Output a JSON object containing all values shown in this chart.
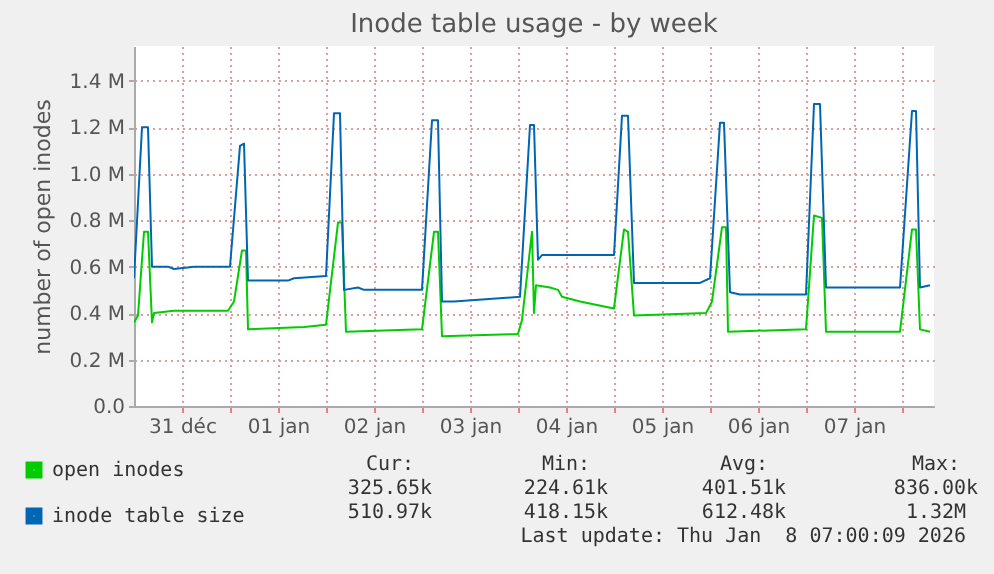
{
  "chart_data": {
    "type": "line",
    "title": "Inode table usage - by week",
    "ylabel": "number of open inodes",
    "xlim": [
      "2025-12-31T00:00",
      "2026-01-08T08:00"
    ],
    "xticks": [
      {
        "value": "2025-12-31T12:00",
        "label": "31 déc"
      },
      {
        "value": "2026-01-01T00:00",
        "label": null
      },
      {
        "value": "2026-01-01T12:00",
        "label": "01 jan"
      },
      {
        "value": "2026-01-02T00:00",
        "label": null
      },
      {
        "value": "2026-01-02T12:00",
        "label": "02 jan"
      },
      {
        "value": "2026-01-03T00:00",
        "label": null
      },
      {
        "value": "2026-01-03T12:00",
        "label": "03 jan"
      },
      {
        "value": "2026-01-04T00:00",
        "label": null
      },
      {
        "value": "2026-01-04T12:00",
        "label": "04 jan"
      },
      {
        "value": "2026-01-05T00:00",
        "label": null
      },
      {
        "value": "2026-01-05T12:00",
        "label": "05 jan"
      },
      {
        "value": "2026-01-06T00:00",
        "label": null
      },
      {
        "value": "2026-01-06T12:00",
        "label": "06 jan"
      },
      {
        "value": "2026-01-07T00:00",
        "label": null
      },
      {
        "value": "2026-01-07T12:00",
        "label": "07 jan"
      },
      {
        "value": "2026-01-08T00:00",
        "label": null
      }
    ],
    "ylim": [
      0,
      1550000
    ],
    "yticks": [
      {
        "value": 0,
        "label": "0.0"
      },
      {
        "value": 200000,
        "label": "0.2 M"
      },
      {
        "value": 400000,
        "label": "0.4 M"
      },
      {
        "value": 600000,
        "label": "0.6 M"
      },
      {
        "value": 800000,
        "label": "0.8 M"
      },
      {
        "value": 1000000,
        "label": "1.0 M"
      },
      {
        "value": 1200000,
        "label": "1.2 M"
      },
      {
        "value": 1400000,
        "label": "1.4 M"
      }
    ],
    "grid": true,
    "legend": "bottom left",
    "line_style": "solid",
    "series": [
      {
        "name": "open inodes",
        "color": "#00cc00",
        "x": [
          "2025-12-31T00:00",
          "2025-12-31T01:00",
          "2025-12-31T02:30",
          "2025-12-31T03:30",
          "2025-12-31T04:30",
          "2025-12-31T05:00",
          "2025-12-31T10:00",
          "2025-12-31T23:30",
          "2026-01-01T01:00",
          "2026-01-01T03:00",
          "2026-01-01T04:00",
          "2026-01-01T04:30",
          "2026-01-01T18:30",
          "2026-01-02T00:00",
          "2026-01-02T03:00",
          "2026-01-02T04:00",
          "2026-01-02T05:00",
          "2026-01-03T00:00",
          "2026-01-03T03:00",
          "2026-01-03T04:00",
          "2026-01-03T05:00",
          "2026-01-04T00:00",
          "2026-01-04T01:00",
          "2026-01-04T03:30",
          "2026-01-04T04:00",
          "2026-01-04T04:30",
          "2026-01-04T08:00",
          "2026-01-04T10:00",
          "2026-01-04T11:00",
          "2026-01-04T15:30",
          "2026-01-05T00:00",
          "2026-01-05T02:30",
          "2026-01-05T03:30",
          "2026-01-05T05:00",
          "2026-01-05T23:00",
          "2026-01-06T00:30",
          "2026-01-06T03:00",
          "2026-01-06T04:00",
          "2026-01-06T04:30",
          "2026-01-07T00:00",
          "2026-01-07T02:00",
          "2026-01-07T04:00",
          "2026-01-07T05:00",
          "2026-01-07T23:30",
          "2026-01-08T02:30",
          "2026-01-08T03:30",
          "2026-01-08T04:30",
          "2026-01-08T07:00"
        ],
        "values": [
          360000,
          390000,
          750000,
          750000,
          360000,
          400000,
          410000,
          410000,
          450000,
          670000,
          670000,
          330000,
          340000,
          350000,
          790000,
          790000,
          320000,
          330000,
          750000,
          750000,
          300000,
          310000,
          370000,
          750000,
          400000,
          520000,
          510000,
          500000,
          470000,
          450000,
          420000,
          760000,
          750000,
          390000,
          400000,
          450000,
          770000,
          770000,
          320000,
          330000,
          820000,
          810000,
          320000,
          320000,
          760000,
          760000,
          330000,
          320000
        ]
      },
      {
        "name": "inode table size",
        "color": "#0066b3",
        "x": [
          "2025-12-31T00:00",
          "2025-12-31T02:00",
          "2025-12-31T03:30",
          "2025-12-31T04:30",
          "2025-12-31T08:30",
          "2025-12-31T10:00",
          "2025-12-31T15:00",
          "2026-01-01T00:00",
          "2026-01-01T02:30",
          "2026-01-01T03:30",
          "2026-01-01T04:30",
          "2026-01-01T14:30",
          "2026-01-01T16:00",
          "2026-01-02T00:00",
          "2026-01-02T02:00",
          "2026-01-02T03:30",
          "2026-01-02T04:30",
          "2026-01-02T08:00",
          "2026-01-02T09:30",
          "2026-01-03T00:00",
          "2026-01-03T02:30",
          "2026-01-03T04:00",
          "2026-01-03T05:00",
          "2026-01-03T08:00",
          "2026-01-04T00:30",
          "2026-01-04T03:00",
          "2026-01-04T04:00",
          "2026-01-04T05:00",
          "2026-01-04T06:00",
          "2026-01-05T00:00",
          "2026-01-05T02:00",
          "2026-01-05T03:30",
          "2026-01-05T05:00",
          "2026-01-05T21:30",
          "2026-01-06T00:00",
          "2026-01-06T02:30",
          "2026-01-06T03:30",
          "2026-01-06T05:00",
          "2026-01-06T07:30",
          "2026-01-07T00:00",
          "2026-01-07T02:00",
          "2026-01-07T03:30",
          "2026-01-07T05:00",
          "2026-01-07T23:30",
          "2026-01-08T02:30",
          "2026-01-08T03:30",
          "2026-01-08T04:30",
          "2026-01-08T07:00"
        ],
        "values": [
          550000,
          1200000,
          1200000,
          600000,
          600000,
          590000,
          600000,
          600000,
          1120000,
          1130000,
          540000,
          540000,
          550000,
          560000,
          1260000,
          1260000,
          500000,
          510000,
          500000,
          500000,
          1230000,
          1230000,
          450000,
          450000,
          470000,
          1210000,
          1210000,
          630000,
          650000,
          650000,
          1250000,
          1250000,
          530000,
          530000,
          550000,
          1220000,
          1220000,
          490000,
          480000,
          480000,
          1300000,
          1300000,
          510000,
          510000,
          1270000,
          1270000,
          510000,
          520000
        ]
      }
    ],
    "annotations": [
      "Cur:",
      "Min:",
      "Avg:",
      "Max:",
      "325.65k",
      "224.61k",
      "401.51k",
      "836.00k",
      "510.97k",
      "418.15k",
      "612.48k",
      "1.32M",
      "Last update: Thu Jan  8 07:00:09 2026"
    ]
  }
}
